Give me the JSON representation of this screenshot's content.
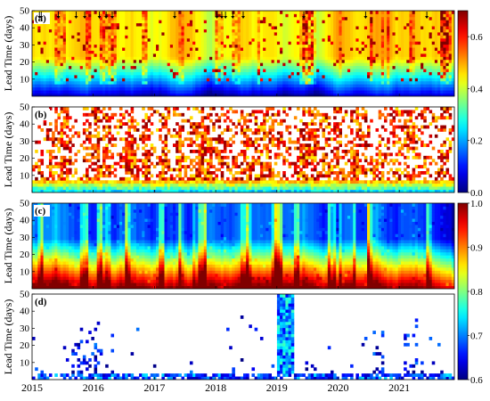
{
  "chart_data": {
    "type": "heatmap",
    "x_range": [
      2015,
      2021.9
    ],
    "x_ticks": [
      "2015",
      "2016",
      "2017",
      "2018",
      "2019",
      "2020",
      "2021"
    ],
    "ylabel": "Lead Time (days)",
    "y_range": [
      0,
      50
    ],
    "y_ticks": [
      "10",
      "20",
      "30",
      "40",
      "50"
    ],
    "event_markers_year": [
      2015.12,
      2015.15,
      2015.43,
      2015.72,
      2015.86,
      2016.1,
      2016.21,
      2016.31,
      2017.33,
      2018.02,
      2018.1,
      2018.16,
      2018.28,
      2018.45,
      2019.44,
      2020.45,
      2021.45
    ],
    "panels": [
      {
        "label": "(a)",
        "description": "continuous field, low values (blue) at short lead times rising to cyan/green/yellow with frequent red vertical streaks",
        "colorbar": "top",
        "low_lead_value": 0.05,
        "high_lead_value": 0.45
      },
      {
        "label": "(b)",
        "description": "sparse field on white background, dense blue-green at short lead, red/orange streaks extending upward",
        "colorbar": "top",
        "low_lead_value": 0.3,
        "high_lead_value": 0.68
      },
      {
        "label": "(c)",
        "description": "high values (red/orange) at short lead decreasing to blue at long lead, with episodic red columns",
        "colorbar": "bottom",
        "low_lead_value": 1.0,
        "high_lead_value": 0.68
      },
      {
        "label": "(d)",
        "description": "mostly white (masked), blue-green patches at short leads, strong event in 2019 reaching 50 days",
        "colorbar": "bottom",
        "low_lead_value": 0.75,
        "high_lead_value": 0.6
      }
    ],
    "colorbars": [
      {
        "position": "top",
        "min": 0.0,
        "max": 0.7,
        "ticks": [
          "0.0",
          "0.2",
          "0.4",
          "0.6"
        ],
        "tick_values": [
          0.0,
          0.2,
          0.4,
          0.6
        ]
      },
      {
        "position": "bottom",
        "min": 0.6,
        "max": 1.0,
        "ticks": [
          "0.6",
          "0.7",
          "0.8",
          "0.9",
          "1.0"
        ],
        "tick_values": [
          0.6,
          0.7,
          0.8,
          0.9,
          1.0
        ]
      }
    ]
  }
}
